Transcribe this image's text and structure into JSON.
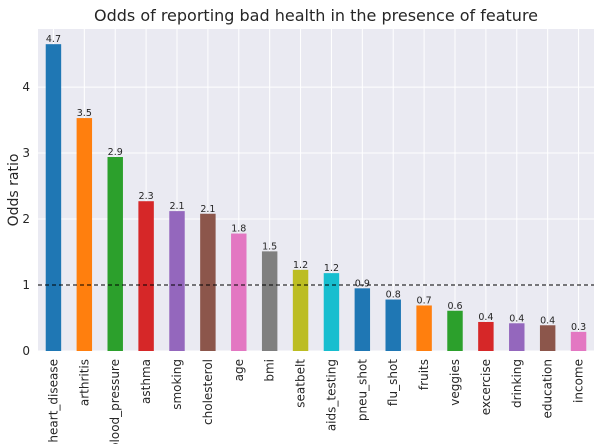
{
  "chart_data": {
    "type": "bar",
    "title": "Odds of reporting bad health in the presence of feature",
    "xlabel": "",
    "ylabel": "Odds ratio",
    "ylim": [
      0,
      4.88
    ],
    "yticks": [
      0,
      1,
      2,
      3,
      4
    ],
    "grid": true,
    "reference_line": {
      "y": 1,
      "style": "dashed",
      "color": "#000000"
    },
    "categories": [
      "heart_disease",
      "arthritis",
      "blood_pressure",
      "asthma",
      "smoking",
      "cholesterol",
      "age",
      "bmi",
      "seatbelt",
      "aids_testing",
      "pneu_shot",
      "flu_shot",
      "fruits",
      "veggies",
      "excercise",
      "drinking",
      "education",
      "income"
    ],
    "values": [
      4.65,
      3.53,
      2.94,
      2.27,
      2.12,
      2.08,
      1.78,
      1.51,
      1.23,
      1.18,
      0.95,
      0.78,
      0.69,
      0.61,
      0.44,
      0.42,
      0.39,
      0.29
    ],
    "data_labels": [
      "4.7",
      "3.5",
      "2.9",
      "2.3",
      "2.1",
      "2.1",
      "1.8",
      "1.5",
      "1.2",
      "1.2",
      "0.9",
      "0.8",
      "0.7",
      "0.6",
      "0.4",
      "0.4",
      "0.4",
      "0.3"
    ],
    "colors": [
      "#1f77b4",
      "#ff7f0e",
      "#2ca02c",
      "#d62728",
      "#9467bd",
      "#8c564b",
      "#e377c2",
      "#7f7f7f",
      "#bcbd22",
      "#17becf",
      "#1f77b4",
      "#1f77b4",
      "#ff7f0e",
      "#2ca02c",
      "#d62728",
      "#9467bd",
      "#8c564b",
      "#e377c2"
    ],
    "plot_background": "#eaeaf2",
    "grid_color": "#ffffff"
  }
}
